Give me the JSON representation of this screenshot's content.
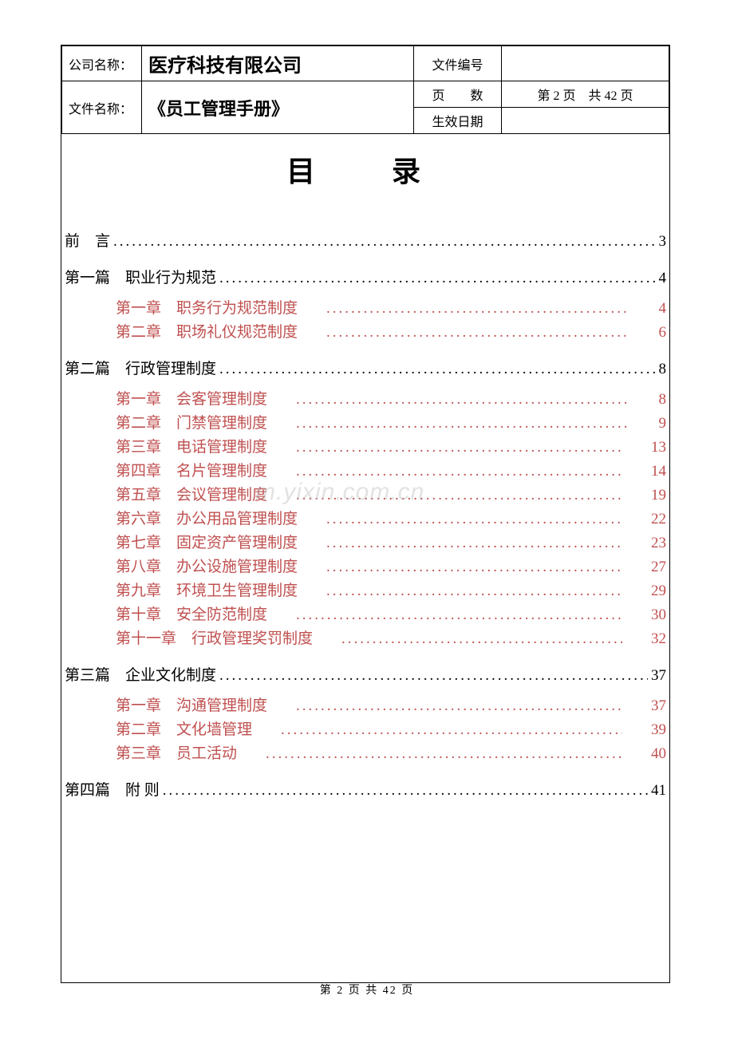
{
  "header": {
    "company_label": "公司名称：",
    "company_name": "医疗科技有限公司",
    "doc_label": "文件名称：",
    "doc_name": "《员工管理手册》",
    "file_no_label": "文件编号",
    "file_no_value": "",
    "page_label": "页　　数",
    "page_value": "第 2 页　共 42 页",
    "effective_label": "生效日期",
    "effective_value": ""
  },
  "title": "目　录",
  "watermark": "m.yixin.com.cn",
  "footer": "第 2 页 共 42 页",
  "colors": {
    "chapter": "#c05050",
    "text": "#000000",
    "bg": "#ffffff"
  },
  "toc": [
    {
      "type": "section",
      "label": "前　言",
      "page": "3"
    },
    {
      "type": "section",
      "label": "第一篇　职业行为规范",
      "page": "4"
    },
    {
      "type": "chapter",
      "label": "第一章　职务行为规范制度",
      "page": "4"
    },
    {
      "type": "chapter",
      "label": "第二章　职场礼仪规范制度",
      "page": "6"
    },
    {
      "type": "section",
      "label": "第二篇　行政管理制度",
      "page": "8"
    },
    {
      "type": "chapter",
      "label": "第一章　会客管理制度",
      "page": "8"
    },
    {
      "type": "chapter",
      "label": "第二章　门禁管理制度",
      "page": "9"
    },
    {
      "type": "chapter",
      "label": "第三章　电话管理制度",
      "page": "13"
    },
    {
      "type": "chapter",
      "label": "第四章　名片管理制度",
      "page": "14"
    },
    {
      "type": "chapter",
      "label": "第五章　会议管理制度",
      "page": "19"
    },
    {
      "type": "chapter",
      "label": "第六章　办公用品管理制度",
      "page": "22"
    },
    {
      "type": "chapter",
      "label": "第七章　固定资产管理制度",
      "page": "23"
    },
    {
      "type": "chapter",
      "label": "第八章　办公设施管理制度",
      "page": "27"
    },
    {
      "type": "chapter",
      "label": "第九章　环境卫生管理制度",
      "page": "29"
    },
    {
      "type": "chapter",
      "label": "第十章　安全防范制度",
      "page": "30"
    },
    {
      "type": "chapter",
      "label": "第十一章　行政管理奖罚制度",
      "page": "32"
    },
    {
      "type": "section",
      "label": "第三篇　企业文化制度",
      "page": "37"
    },
    {
      "type": "chapter",
      "label": "第一章　沟通管理制度",
      "page": "37"
    },
    {
      "type": "chapter",
      "label": "第二章　文化墙管理",
      "page": "39"
    },
    {
      "type": "chapter",
      "label": "第三章　员工活动",
      "page": "40"
    },
    {
      "type": "section",
      "label": "第四篇　附 则",
      "page": "41"
    }
  ]
}
